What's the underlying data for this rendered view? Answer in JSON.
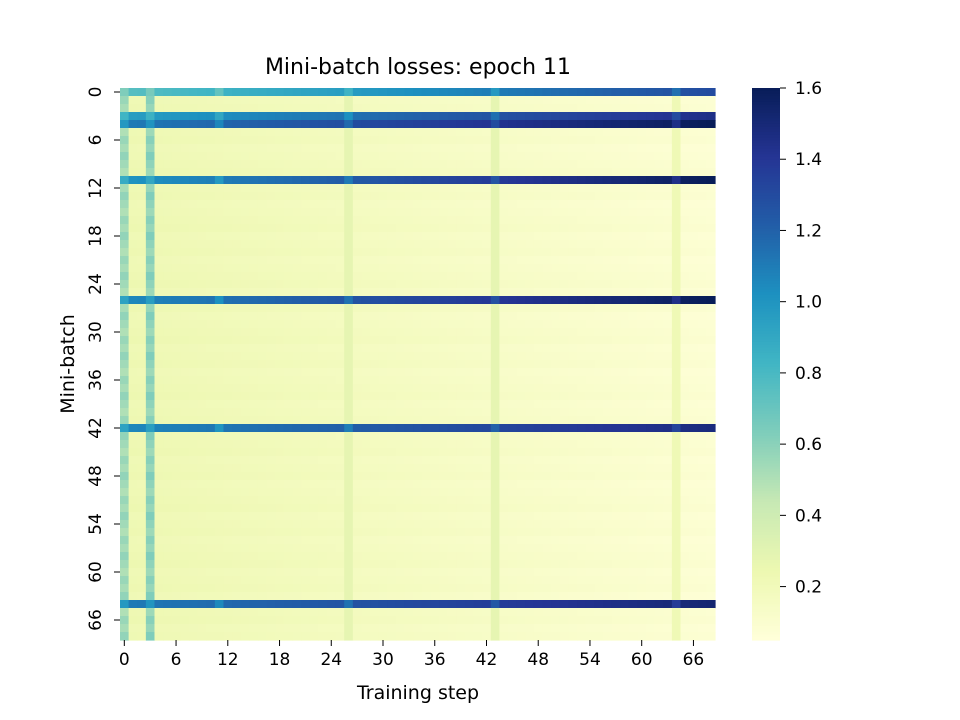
{
  "chart_data": {
    "type": "heatmap",
    "title": "Mini-batch losses: epoch 11",
    "xlabel": "Training step",
    "ylabel": "Mini-batch",
    "n_cols": 69,
    "n_rows": 69,
    "x_ticks": [
      "0",
      "6",
      "12",
      "18",
      "24",
      "30",
      "36",
      "42",
      "48",
      "54",
      "60",
      "66"
    ],
    "y_ticks": [
      "0",
      "6",
      "12",
      "18",
      "24",
      "30",
      "36",
      "42",
      "48",
      "54",
      "60",
      "66"
    ],
    "colorbar": {
      "min": 0.05,
      "max": 1.6,
      "ticks": [
        "0.2",
        "0.4",
        "0.6",
        "0.8",
        "1.0",
        "1.2",
        "1.4",
        "1.6"
      ],
      "colormap": "YlGnBu"
    },
    "high_loss_rows": [
      {
        "row": 3,
        "start": 0.95,
        "end": 1.45
      },
      {
        "row": 4,
        "start": 1.1,
        "end": 1.6
      },
      {
        "row": 11,
        "start": 1.0,
        "end": 1.6
      },
      {
        "row": 26,
        "start": 1.05,
        "end": 1.6
      },
      {
        "row": 42,
        "start": 1.05,
        "end": 1.48
      },
      {
        "row": 64,
        "start": 1.1,
        "end": 1.52
      }
    ],
    "medium_rows": [
      {
        "row": 0,
        "start": 0.75,
        "end": 1.3
      }
    ],
    "spike_columns": [
      {
        "col": 0,
        "value": 0.5
      },
      {
        "col": 3,
        "value": 0.55
      },
      {
        "col": 11,
        "value": 0.2
      },
      {
        "col": 26,
        "value": 0.28
      },
      {
        "col": 43,
        "value": 0.28
      },
      {
        "col": 64,
        "value": 0.22
      }
    ],
    "baseline": {
      "start": 0.22,
      "end": 0.07
    }
  }
}
